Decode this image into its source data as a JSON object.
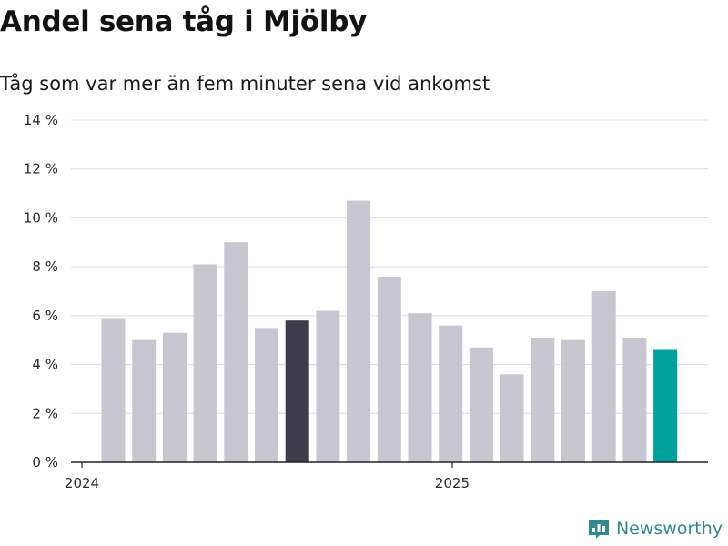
{
  "title": "Andel sena tåg i Mjölby",
  "subtitle": "Tåg som var mer än fem minuter sena vid ankomst",
  "brand": {
    "name": "Newsworthy",
    "icon": "newsworthy-logo-icon"
  },
  "colors": {
    "bar_default": "#c8c6d1",
    "bar_highlight": "#3e3c49",
    "bar_latest": "#00a39b",
    "grid": "#dcdcdc",
    "axis": "#222222",
    "brand": "#2e8b8b"
  },
  "chart_data": {
    "type": "bar",
    "title": "Andel sena tåg i Mjölby",
    "subtitle": "Tåg som var mer än fem minuter sena vid ankomst",
    "xlabel": "",
    "ylabel": "",
    "ylim": [
      0,
      14
    ],
    "yticks": [
      0,
      2,
      4,
      6,
      8,
      10,
      12,
      14
    ],
    "ytick_labels": [
      "0 %",
      "2 %",
      "4 %",
      "6 %",
      "8 %",
      "10 %",
      "12 %",
      "14 %"
    ],
    "xtick_labels": [
      "2024",
      "2025"
    ],
    "grid": true,
    "categories": [
      "2024-01",
      "2024-02",
      "2024-03",
      "2024-04",
      "2024-05",
      "2024-06",
      "2024-07",
      "2024-08",
      "2024-09",
      "2024-10",
      "2024-11",
      "2024-12",
      "2025-01",
      "2025-02",
      "2025-03",
      "2025-04",
      "2025-05",
      "2025-06",
      "2025-07"
    ],
    "values": [
      5.9,
      5.0,
      5.3,
      8.1,
      9.0,
      5.5,
      5.8,
      6.2,
      10.7,
      7.6,
      6.1,
      5.6,
      4.7,
      3.6,
      5.1,
      5.0,
      7.0,
      5.1,
      4.6
    ],
    "highlight": {
      "2024-07": "bar_highlight",
      "2025-07": "bar_latest"
    }
  }
}
